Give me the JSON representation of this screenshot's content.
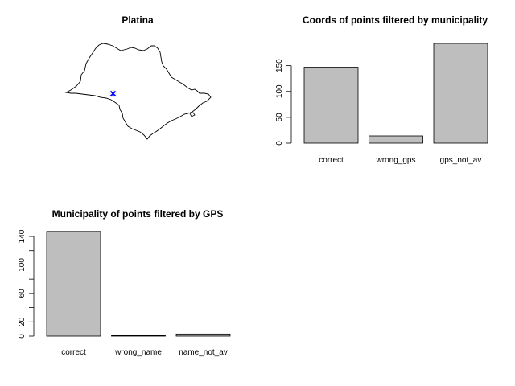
{
  "map_panel": {
    "title": "Platina",
    "outline_color": "#000000",
    "point_color": "#0000ff"
  },
  "chart_data": [
    {
      "type": "bar",
      "title": "Coords of points filtered by municipality",
      "categories": [
        "correct",
        "wrong_gps",
        "gps_not_av"
      ],
      "values": [
        147,
        14,
        193
      ],
      "yticks": [
        0,
        50,
        100,
        150
      ],
      "ylim": [
        0,
        200
      ],
      "xlabel": "",
      "ylabel": "",
      "bar_color": "#bebebe"
    },
    {
      "type": "bar",
      "title": "Municipality of points filtered by GPS",
      "categories": [
        "correct",
        "wrong_name",
        "name_not_av"
      ],
      "values": [
        147,
        0,
        3
      ],
      "yticks": [
        0,
        20,
        60,
        100,
        140
      ],
      "minor_yticks": [
        40,
        80,
        120
      ],
      "ylim": [
        0,
        150
      ],
      "xlabel": "",
      "ylabel": "",
      "bar_color": "#bebebe"
    }
  ]
}
